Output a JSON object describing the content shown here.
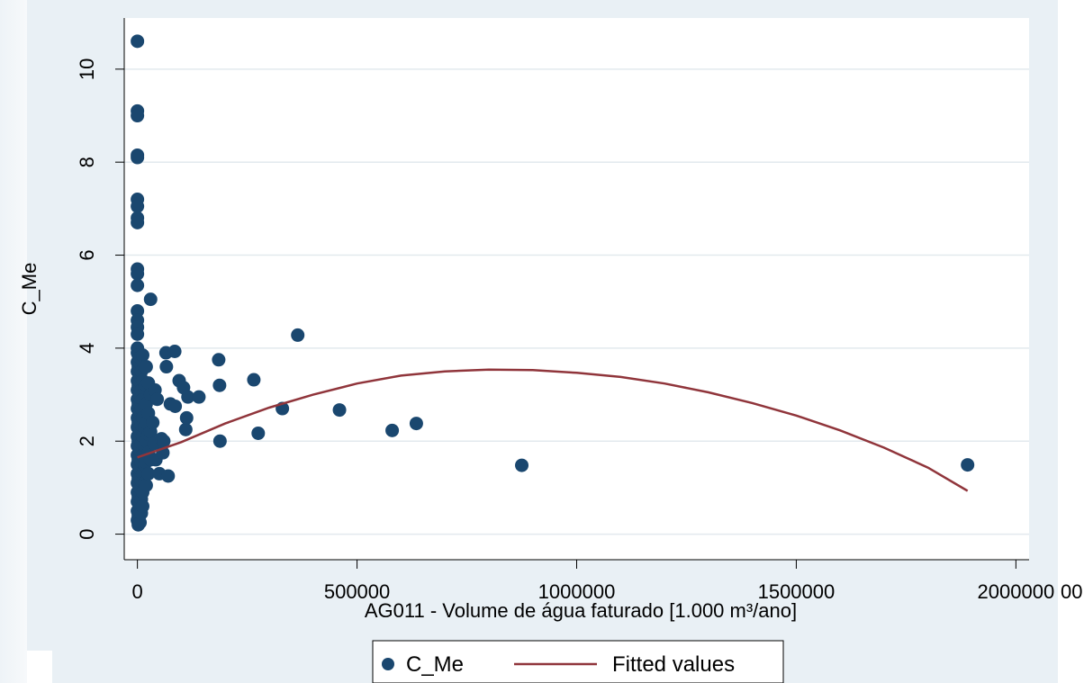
{
  "chart_data": {
    "type": "scatter",
    "title": "",
    "xlabel": "AG011 - Volume de água faturado [1.000 m³/ano]",
    "ylabel": "C_Me",
    "xlim": [
      -30000,
      2030000
    ],
    "ylim": [
      -0.55,
      11.1
    ],
    "x_ticks": [
      {
        "value": 0,
        "label": "0"
      },
      {
        "value": 500000,
        "label": "500000"
      },
      {
        "value": 1000000,
        "label": "1000000"
      },
      {
        "value": 1500000,
        "label": "1500000"
      },
      {
        "value": 2000000,
        "label": "2000000"
      }
    ],
    "y_ticks": [
      {
        "value": 0,
        "label": "0"
      },
      {
        "value": 2,
        "label": "2"
      },
      {
        "value": 4,
        "label": "4"
      },
      {
        "value": 6,
        "label": "6"
      },
      {
        "value": 8,
        "label": "8"
      },
      {
        "value": 10,
        "label": "10"
      }
    ],
    "grid": "horizontal",
    "legend_position": "bottom",
    "colors": {
      "points": "#1a476f",
      "fitted": "#90353b",
      "grid": "#e2e9ee",
      "plot_background": "#ffffff",
      "outer_background": "#e9f0f5"
    },
    "series": [
      {
        "name": "C_Me",
        "kind": "scatter",
        "points": [
          [
            0,
            10.6
          ],
          [
            0,
            9.1
          ],
          [
            0,
            9.0
          ],
          [
            0,
            8.15
          ],
          [
            0,
            8.1
          ],
          [
            0,
            7.2
          ],
          [
            0,
            7.05
          ],
          [
            0,
            6.8
          ],
          [
            0,
            6.7
          ],
          [
            0,
            5.7
          ],
          [
            0,
            5.6
          ],
          [
            0,
            5.35
          ],
          [
            0,
            4.8
          ],
          [
            0,
            4.6
          ],
          [
            0,
            4.45
          ],
          [
            0,
            4.3
          ],
          [
            0,
            4.0
          ],
          [
            0,
            3.9
          ],
          [
            0,
            3.7
          ],
          [
            0,
            3.5
          ],
          [
            0,
            3.3
          ],
          [
            0,
            3.1
          ],
          [
            0,
            2.9
          ],
          [
            0,
            2.7
          ],
          [
            0,
            2.5
          ],
          [
            0,
            2.3
          ],
          [
            0,
            2.1
          ],
          [
            0,
            1.9
          ],
          [
            0,
            1.7
          ],
          [
            0,
            1.5
          ],
          [
            0,
            1.3
          ],
          [
            0,
            1.1
          ],
          [
            0,
            0.9
          ],
          [
            0,
            0.7
          ],
          [
            0,
            0.5
          ],
          [
            0,
            0.3
          ],
          [
            2000,
            3.85
          ],
          [
            2000,
            3.6
          ],
          [
            2000,
            3.2
          ],
          [
            2000,
            2.8
          ],
          [
            2000,
            2.4
          ],
          [
            2000,
            2.0
          ],
          [
            2000,
            1.6
          ],
          [
            2000,
            1.2
          ],
          [
            2000,
            0.8
          ],
          [
            2000,
            0.4
          ],
          [
            2000,
            0.2
          ],
          [
            4000,
            3.7
          ],
          [
            4000,
            3.3
          ],
          [
            4000,
            2.95
          ],
          [
            4000,
            2.6
          ],
          [
            4000,
            2.25
          ],
          [
            4000,
            1.85
          ],
          [
            4000,
            1.45
          ],
          [
            4000,
            1.05
          ],
          [
            4000,
            0.65
          ],
          [
            4000,
            0.3
          ],
          [
            6000,
            3.8
          ],
          [
            6000,
            3.4
          ],
          [
            6000,
            3.0
          ],
          [
            6000,
            2.65
          ],
          [
            6000,
            2.2
          ],
          [
            6000,
            1.8
          ],
          [
            6000,
            1.4
          ],
          [
            6000,
            1.0
          ],
          [
            6000,
            0.6
          ],
          [
            6000,
            0.25
          ],
          [
            9000,
            3.5
          ],
          [
            9000,
            3.1
          ],
          [
            9000,
            2.7
          ],
          [
            9000,
            2.35
          ],
          [
            9000,
            1.95
          ],
          [
            9000,
            1.55
          ],
          [
            9000,
            1.15
          ],
          [
            9000,
            0.75
          ],
          [
            9000,
            0.45
          ],
          [
            12000,
            3.85
          ],
          [
            12000,
            3.3
          ],
          [
            12000,
            2.9
          ],
          [
            12000,
            2.5
          ],
          [
            12000,
            2.1
          ],
          [
            12000,
            1.7
          ],
          [
            12000,
            1.3
          ],
          [
            12000,
            0.9
          ],
          [
            12000,
            0.6
          ],
          [
            16000,
            3.6
          ],
          [
            16000,
            3.15
          ],
          [
            16000,
            2.75
          ],
          [
            16000,
            2.3
          ],
          [
            16000,
            1.9
          ],
          [
            16000,
            1.5
          ],
          [
            16000,
            1.1
          ],
          [
            20000,
            3.6
          ],
          [
            20000,
            3.2
          ],
          [
            20000,
            2.8
          ],
          [
            20000,
            2.4
          ],
          [
            20000,
            2.0
          ],
          [
            20000,
            1.55
          ],
          [
            20000,
            1.05
          ],
          [
            25000,
            3.25
          ],
          [
            25000,
            2.6
          ],
          [
            25000,
            2.15
          ],
          [
            25000,
            1.75
          ],
          [
            25000,
            1.3
          ],
          [
            30000,
            5.05
          ],
          [
            30000,
            3.0
          ],
          [
            30000,
            2.2
          ],
          [
            30000,
            1.6
          ],
          [
            35000,
            2.4
          ],
          [
            38000,
            1.95
          ],
          [
            40000,
            3.1
          ],
          [
            42000,
            1.6
          ],
          [
            45000,
            2.9
          ],
          [
            50000,
            1.3
          ],
          [
            55000,
            2.05
          ],
          [
            58000,
            1.75
          ],
          [
            60000,
            2.0
          ],
          [
            65000,
            3.9
          ],
          [
            66000,
            3.6
          ],
          [
            70000,
            1.25
          ],
          [
            75000,
            2.8
          ],
          [
            85000,
            3.93
          ],
          [
            86000,
            2.75
          ],
          [
            95000,
            3.3
          ],
          [
            105000,
            3.15
          ],
          [
            110000,
            2.25
          ],
          [
            112000,
            2.5
          ],
          [
            115000,
            2.95
          ],
          [
            140000,
            2.95
          ],
          [
            185000,
            3.75
          ],
          [
            187000,
            3.2
          ],
          [
            188000,
            2.0
          ],
          [
            265000,
            3.32
          ],
          [
            275000,
            2.17
          ],
          [
            330000,
            2.7
          ],
          [
            365000,
            4.28
          ],
          [
            460000,
            2.67
          ],
          [
            580000,
            2.23
          ],
          [
            635000,
            2.38
          ],
          [
            875000,
            1.48
          ],
          [
            1890000,
            1.49
          ]
        ]
      },
      {
        "name": "Fitted values",
        "kind": "line",
        "points": [
          [
            0,
            1.65
          ],
          [
            100000,
            1.98
          ],
          [
            200000,
            2.38
          ],
          [
            300000,
            2.72
          ],
          [
            400000,
            3.0
          ],
          [
            500000,
            3.24
          ],
          [
            600000,
            3.41
          ],
          [
            700000,
            3.5
          ],
          [
            800000,
            3.54
          ],
          [
            900000,
            3.53
          ],
          [
            1000000,
            3.47
          ],
          [
            1100000,
            3.38
          ],
          [
            1200000,
            3.24
          ],
          [
            1300000,
            3.05
          ],
          [
            1400000,
            2.82
          ],
          [
            1500000,
            2.55
          ],
          [
            1600000,
            2.23
          ],
          [
            1700000,
            1.86
          ],
          [
            1800000,
            1.43
          ],
          [
            1890000,
            0.93
          ]
        ]
      }
    ],
    "legend": {
      "items": [
        {
          "label": "C_Me",
          "marker": "circle"
        },
        {
          "label": "Fitted values",
          "marker": "line"
        }
      ]
    },
    "overflow_label": "00"
  }
}
